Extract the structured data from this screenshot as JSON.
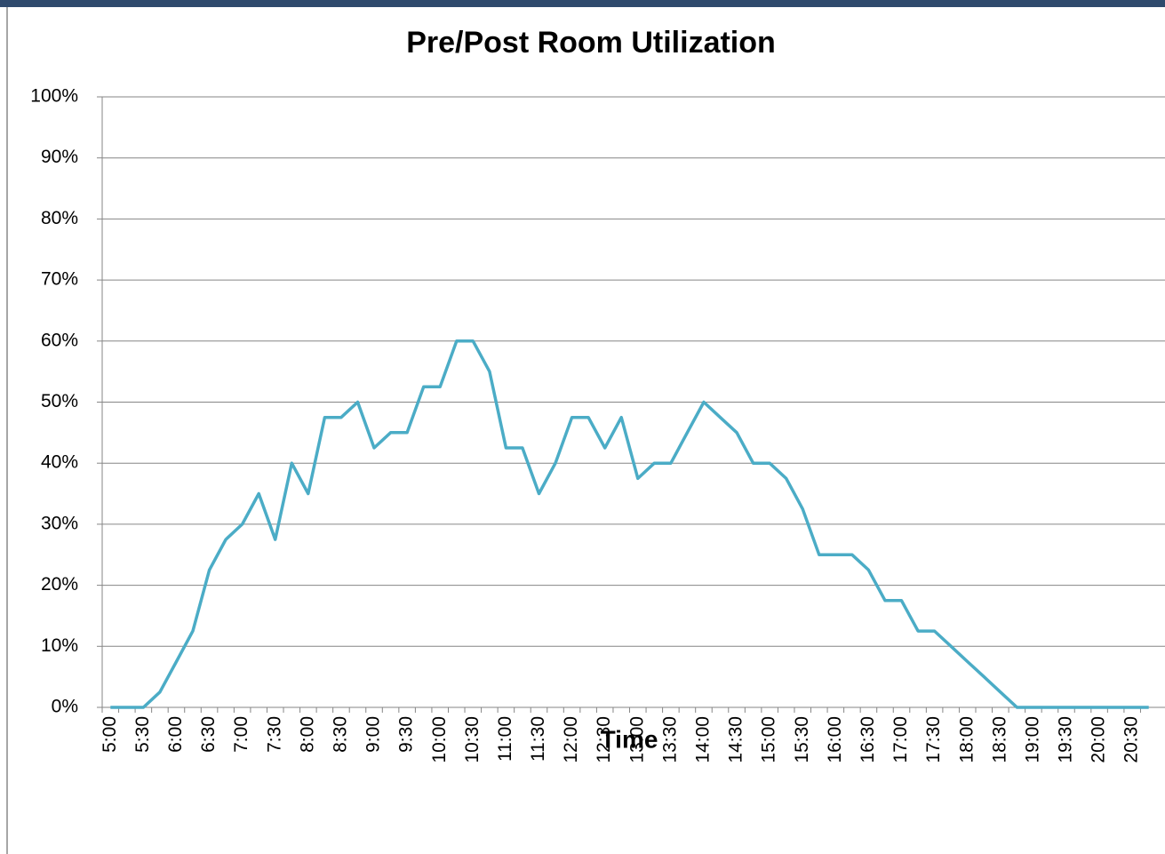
{
  "chart_data": {
    "type": "line",
    "title": "Pre/Post Room Utilization",
    "x_label": "Time",
    "categories": [
      "5:00",
      null,
      "5:30",
      null,
      "6:00",
      null,
      "6:30",
      null,
      "7:00",
      null,
      "7:30",
      null,
      "8:00",
      null,
      "8:30",
      null,
      "9:00",
      null,
      "9:30",
      null,
      "10:00",
      null,
      "10:30",
      null,
      "11:00",
      null,
      "11:30",
      null,
      "12:00",
      null,
      "12:30",
      null,
      "13:00",
      null,
      "13:30",
      null,
      "14:00",
      null,
      "14:30",
      null,
      "15:00",
      null,
      "15:30",
      null,
      "16:00",
      null,
      "16:30",
      null,
      "17:00",
      null,
      "17:30",
      null,
      "18:00",
      null,
      "18:30",
      null,
      "19:00",
      null,
      "19:30",
      null,
      "20:00",
      null,
      "20:30",
      null
    ],
    "values": [
      0,
      0,
      0,
      2.5,
      7.5,
      12.5,
      22.5,
      27.5,
      30,
      35,
      27.5,
      40,
      35,
      47.5,
      47.5,
      50,
      42.5,
      45,
      45,
      52.5,
      52.5,
      60,
      60,
      55,
      42.5,
      42.5,
      35,
      40,
      47.5,
      47.5,
      42.5,
      47.5,
      37.5,
      40,
      40,
      45,
      50,
      47.5,
      45,
      40,
      40,
      37.5,
      32.5,
      25,
      25,
      25,
      22.5,
      17.5,
      17.5,
      12.5,
      12.5,
      10,
      7.5,
      5,
      2.5,
      0,
      0,
      0,
      0,
      0,
      0,
      0,
      0,
      0
    ],
    "color": "#4bacc6",
    "ylim": [
      0,
      100
    ],
    "yticks": [
      {
        "value": 0,
        "label": "0%"
      },
      {
        "value": 10,
        "label": "10%"
      },
      {
        "value": 20,
        "label": "20%"
      },
      {
        "value": 30,
        "label": "30%"
      },
      {
        "value": 40,
        "label": "40%"
      },
      {
        "value": 50,
        "label": "50%"
      },
      {
        "value": 60,
        "label": "60%"
      },
      {
        "value": 70,
        "label": "70%"
      },
      {
        "value": 80,
        "label": "80%"
      },
      {
        "value": 90,
        "label": "90%"
      },
      {
        "value": 100,
        "label": "100%"
      }
    ],
    "grid": true
  }
}
